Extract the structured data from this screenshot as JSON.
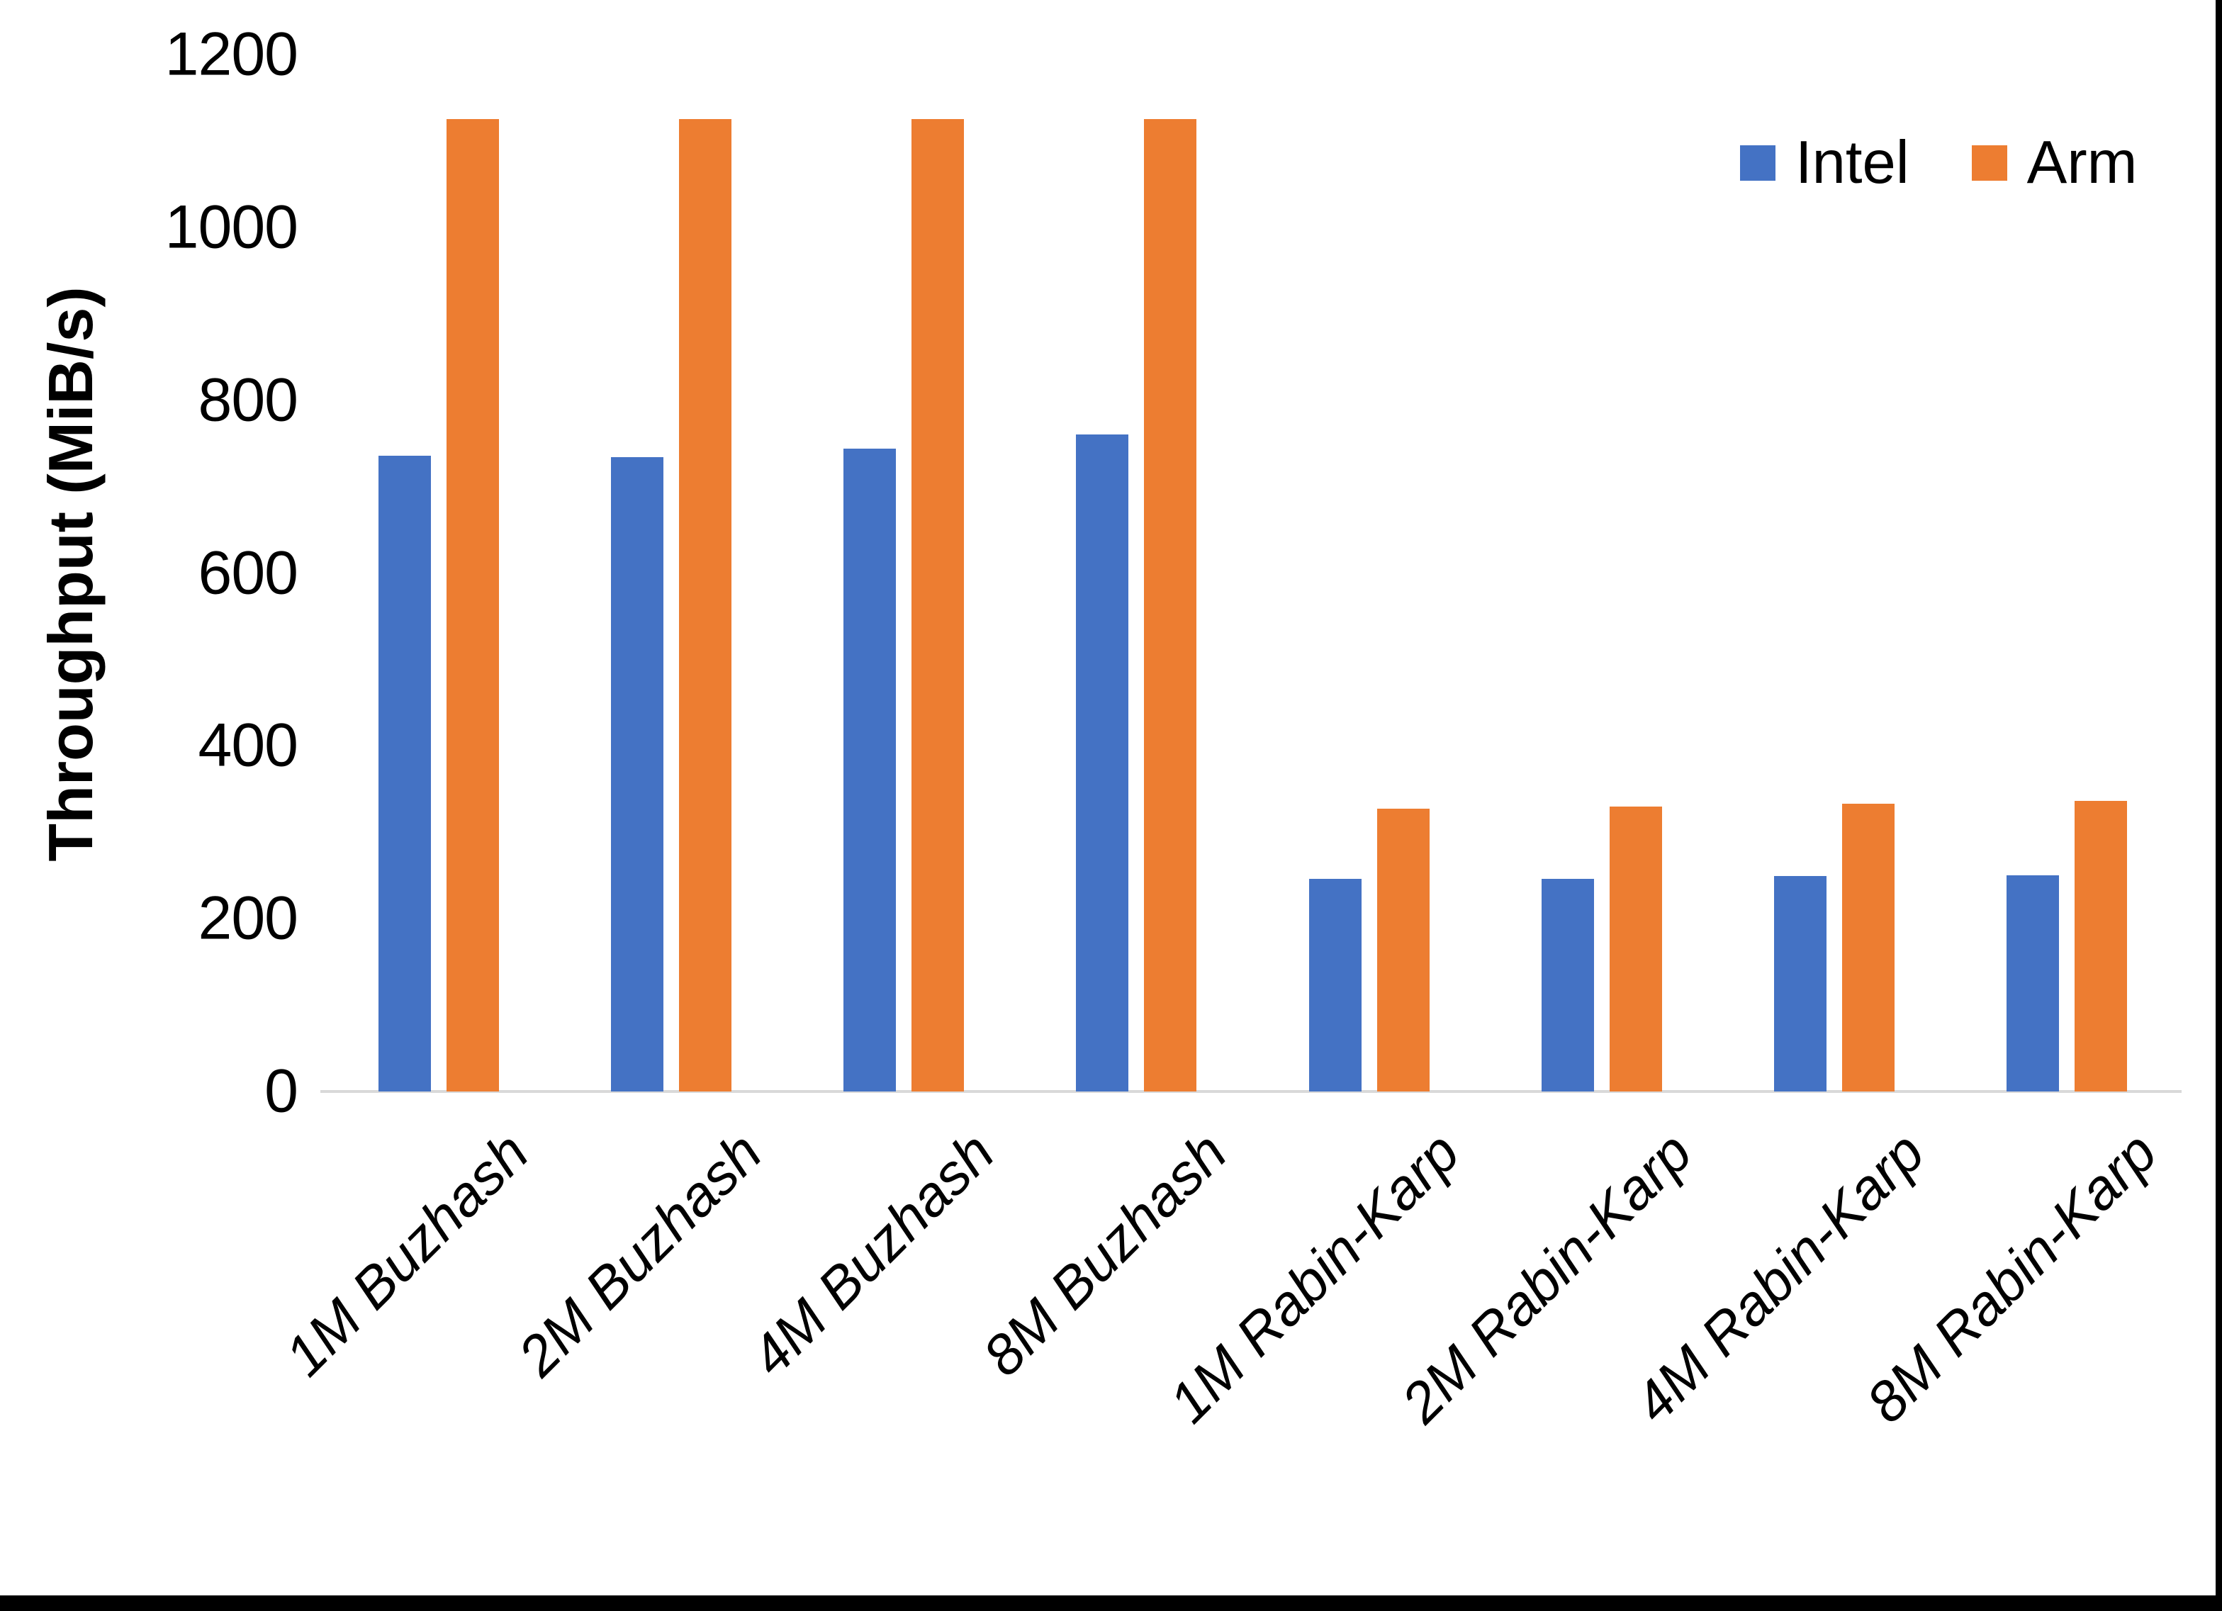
{
  "chart_data": {
    "type": "bar",
    "title": "",
    "xlabel": "",
    "ylabel": "Throughput (MiB/s)",
    "ylim": [
      0,
      1200
    ],
    "yticks": [
      0,
      200,
      400,
      600,
      800,
      1000,
      1200
    ],
    "grid": false,
    "legend_position": "top-right",
    "categories": [
      "1M Buzhash",
      "2M Buzhash",
      "4M Buzhash",
      "8M Buzhash",
      "1M Rabin-Karp",
      "2M Rabin-Karp",
      "4M Rabin-Karp",
      "8M Rabin-Karp"
    ],
    "series": [
      {
        "name": "Intel",
        "color": "#4472C4",
        "values": [
          736,
          734,
          744,
          760,
          246,
          246,
          249,
          250
        ]
      },
      {
        "name": "Arm",
        "color": "#ED7D31",
        "values": [
          1125,
          1125,
          1125,
          1125,
          327,
          330,
          333,
          336
        ]
      }
    ],
    "axis_line_color": "#D9D9D9",
    "text_color": "#000000"
  },
  "frame": {
    "right_bar_color": "#000000",
    "bottom_bar_color": "#000000"
  }
}
